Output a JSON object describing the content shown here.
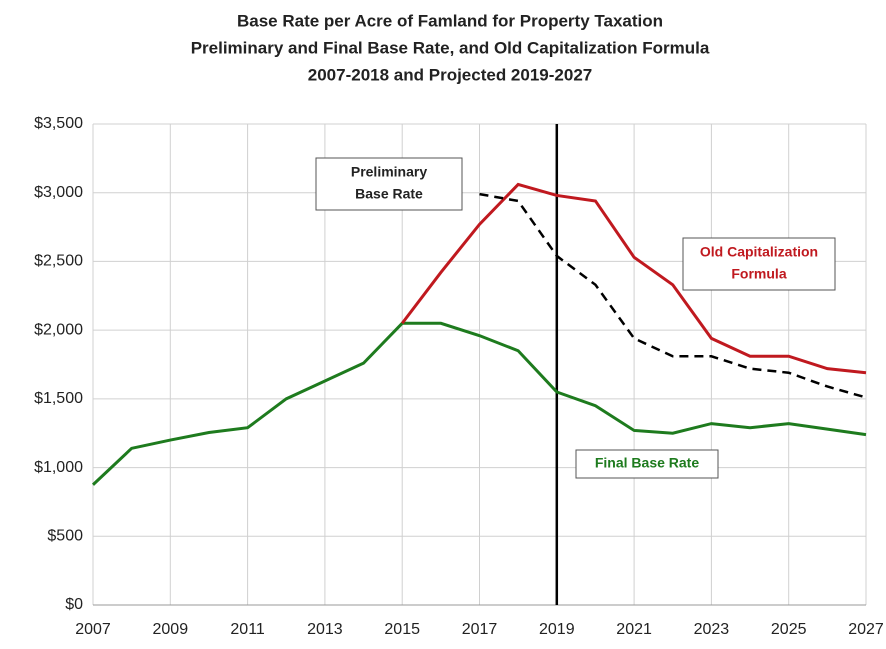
{
  "chart_data": {
    "type": "line",
    "title": [
      "Base Rate per Acre of Famland for Property Taxation",
      "Preliminary and Final Base Rate, and Old Capitalization Formula",
      "2007-2018 and Projected 2019-2027"
    ],
    "x": [
      2007,
      2008,
      2009,
      2010,
      2011,
      2012,
      2013,
      2014,
      2015,
      2016,
      2017,
      2018,
      2019,
      2020,
      2021,
      2022,
      2023,
      2024,
      2025,
      2026,
      2027
    ],
    "series": [
      {
        "label": [
          "Final Base Rate"
        ],
        "color": "#1e7b1e",
        "dash": false,
        "values": [
          875,
          1140,
          1200,
          1255,
          1290,
          1500,
          1630,
          1760,
          2050,
          2050,
          1960,
          1850,
          1550,
          1450,
          1270,
          1250,
          1320,
          1290,
          1320,
          1280,
          1240
        ]
      },
      {
        "label": [
          "Old Capitalization",
          "Formula"
        ],
        "color": "#c0191f",
        "dash": false,
        "values": [
          null,
          null,
          null,
          null,
          null,
          null,
          null,
          null,
          2050,
          2420,
          2770,
          3060,
          2980,
          2940,
          2530,
          2330,
          1940,
          1810,
          1810,
          1720,
          1690
        ]
      },
      {
        "label": [
          "Preliminary",
          "Base Rate"
        ],
        "color": "#000000",
        "dash": true,
        "values": [
          null,
          null,
          null,
          null,
          null,
          null,
          null,
          null,
          null,
          null,
          2990,
          2940,
          2540,
          2330,
          1940,
          1810,
          1810,
          1720,
          1690,
          1590,
          1510
        ]
      }
    ],
    "vline": 2019,
    "xlim": [
      2007,
      2027
    ],
    "xticks": [
      2007,
      2009,
      2011,
      2013,
      2015,
      2017,
      2019,
      2021,
      2023,
      2025,
      2027
    ],
    "ylim": [
      0,
      3500
    ],
    "yticks": [
      {
        "value": 0,
        "label": "$0"
      },
      {
        "value": 500,
        "label": "$500"
      },
      {
        "value": 1000,
        "label": "$1,000"
      },
      {
        "value": 1500,
        "label": "$1,500"
      },
      {
        "value": 2000,
        "label": "$2,000"
      },
      {
        "value": 2500,
        "label": "$2,500"
      },
      {
        "value": 3000,
        "label": "$3,000"
      },
      {
        "value": 3500,
        "label": "$3,500"
      }
    ],
    "grid": true
  }
}
